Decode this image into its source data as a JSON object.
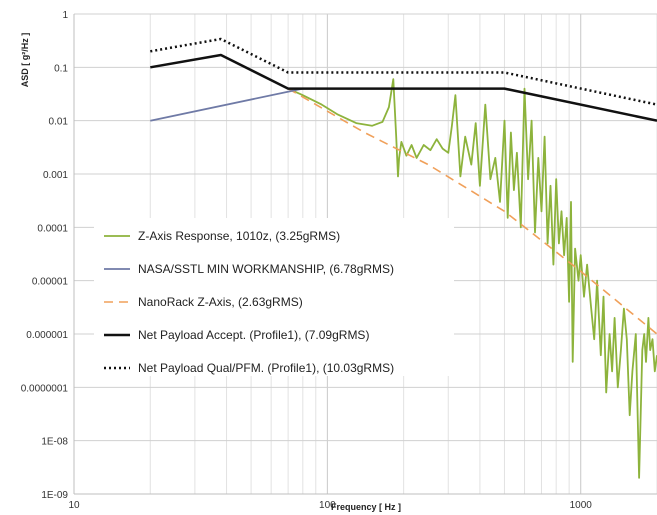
{
  "chart_data": {
    "type": "line",
    "xlabel": "Frequency [ Hz ]",
    "ylabel": "ASD [ g²/Hz ]",
    "x_scale": "log",
    "y_scale": "log",
    "xlim": [
      10,
      2000
    ],
    "ylim": [
      1e-09,
      1
    ],
    "x_ticks": [
      {
        "v": 10,
        "label": "10"
      },
      {
        "v": 100,
        "label": "100"
      },
      {
        "v": 1000,
        "label": "1000"
      }
    ],
    "y_ticks": [
      {
        "v": 1,
        "label": "1"
      },
      {
        "v": 0.1,
        "label": "0.1"
      },
      {
        "v": 0.01,
        "label": "0.01"
      },
      {
        "v": 0.001,
        "label": "0.001"
      },
      {
        "v": 0.0001,
        "label": "0.0001"
      },
      {
        "v": 1e-05,
        "label": "0.00001"
      },
      {
        "v": 1e-06,
        "label": "0.000001"
      },
      {
        "v": 1e-07,
        "label": "0.0000001"
      },
      {
        "v": 1e-08,
        "label": "1E-08"
      },
      {
        "v": 1e-09,
        "label": "1E-09"
      }
    ],
    "grid": true,
    "legend_position": "lower-left",
    "series": [
      {
        "name": "Z-Axis Response, 1010z, (3.25gRMS)",
        "color": "#8db33c",
        "dash": "solid",
        "x": [
          70,
          80,
          95,
          110,
          130,
          150,
          165,
          175,
          182,
          187,
          190,
          192,
          196,
          205,
          215,
          225,
          240,
          255,
          270,
          285,
          300,
          310,
          320,
          335,
          350,
          370,
          385,
          400,
          420,
          440,
          460,
          480,
          500,
          515,
          530,
          545,
          560,
          580,
          600,
          620,
          640,
          660,
          680,
          700,
          720,
          740,
          760,
          780,
          800,
          820,
          840,
          860,
          880,
          900,
          915,
          930,
          950,
          980,
          1000,
          1030,
          1060,
          1100,
          1130,
          1160,
          1200,
          1230,
          1260,
          1300,
          1330,
          1360,
          1400,
          1440,
          1480,
          1520,
          1560,
          1600,
          1650,
          1700,
          1750,
          1780,
          1810,
          1850,
          1880,
          1920,
          1960,
          2000
        ],
        "y": [
          0.04,
          0.03,
          0.02,
          0.013,
          0.009,
          0.008,
          0.0095,
          0.018,
          0.06,
          0.005,
          0.0009,
          0.002,
          0.004,
          0.0022,
          0.0035,
          0.002,
          0.0035,
          0.0028,
          0.0045,
          0.003,
          0.0025,
          0.008,
          0.03,
          0.0009,
          0.005,
          0.0015,
          0.009,
          0.0006,
          0.02,
          0.0008,
          0.002,
          0.0003,
          0.01,
          0.00015,
          0.006,
          0.0005,
          0.0025,
          0.0001,
          0.04,
          0.0008,
          0.01,
          8e-05,
          0.002,
          0.0002,
          0.005,
          5e-05,
          0.0006,
          2e-05,
          0.0008,
          5e-05,
          0.0002,
          3e-05,
          0.00015,
          4e-06,
          0.0003,
          3e-07,
          4e-05,
          1e-05,
          3e-05,
          5e-06,
          2e-05,
          3e-06,
          8e-07,
          1e-05,
          4e-07,
          5e-06,
          8e-08,
          1e-06,
          2e-07,
          2e-06,
          1e-07,
          5e-07,
          3e-06,
          8e-07,
          3e-08,
          2e-07,
          1e-06,
          2e-09,
          5e-07,
          1e-06,
          3e-07,
          2e-06,
          5e-07,
          8e-07,
          2e-07,
          4e-07
        ]
      },
      {
        "name": "NASA/SSTL MIN WORKMANSHIP, (6.78gRMS)",
        "color": "#6f7aa6",
        "dash": "solid",
        "x": [
          20,
          80
        ],
        "y": [
          0.01,
          0.04
        ]
      },
      {
        "name": "NanoRack Z-Axis, (2.63gRMS)",
        "color": "#f0a05a",
        "dash": "dashed",
        "x": [
          70,
          140,
          250,
          500,
          1000,
          2000
        ],
        "y": [
          0.04,
          0.006,
          0.0015,
          0.0002,
          1.5e-05,
          1e-06
        ]
      },
      {
        "name": "Net Payload Accept. (Profile1), (7.09gRMS)",
        "color": "#111111",
        "dash": "solid",
        "x": [
          20,
          38,
          70,
          500,
          2000
        ],
        "y": [
          0.1,
          0.17,
          0.04,
          0.04,
          0.01
        ]
      },
      {
        "name": "Net Payload Qual/PFM. (Profile1), (10.03gRMS)",
        "color": "#111111",
        "dash": "dotted",
        "x": [
          20,
          38,
          70,
          500,
          2000
        ],
        "y": [
          0.2,
          0.34,
          0.08,
          0.08,
          0.02
        ]
      }
    ]
  }
}
